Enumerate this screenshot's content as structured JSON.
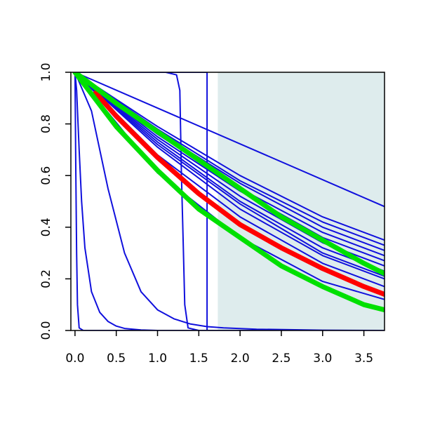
{
  "chart_data": {
    "type": "line",
    "title": "",
    "xlabel": "",
    "ylabel": "",
    "xlim": [
      -0.05,
      3.75
    ],
    "ylim": [
      0.0,
      1.0
    ],
    "x_ticks": [
      0.0,
      0.5,
      1.0,
      1.5,
      2.0,
      2.5,
      3.0,
      3.5
    ],
    "x_tick_labels": [
      "0.0",
      "0.5",
      "1.0",
      "1.5",
      "2.0",
      "2.5",
      "3.0",
      "3.5"
    ],
    "y_ticks": [
      0.0,
      0.2,
      0.4,
      0.6,
      0.8,
      1.0
    ],
    "y_tick_labels": [
      "0.0",
      "0.2",
      "0.4",
      "0.6",
      "0.8",
      "1.0"
    ],
    "grid": false,
    "legend": "none",
    "shaded_region": {
      "x_from": 1.73,
      "x_to": 3.75,
      "color": "#deeced"
    },
    "colors": {
      "blue": "#1010dd",
      "red": "#ff0000",
      "green": "#00e000"
    },
    "series": [
      {
        "color": "blue",
        "weight": "thin",
        "x": [
          0.0,
          0.02,
          0.05,
          1.6,
          1.6,
          1.62,
          3.75
        ],
        "y": [
          1.0,
          1.0,
          1.0,
          1.0,
          0.0,
          0.0,
          0.0
        ]
      },
      {
        "color": "blue",
        "weight": "thin",
        "x": [
          0.0,
          1.1,
          1.23,
          1.27,
          1.29,
          1.31,
          1.33,
          1.37,
          1.5,
          3.75
        ],
        "y": [
          1.0,
          1.0,
          0.99,
          0.93,
          0.6,
          0.35,
          0.1,
          0.01,
          0.0,
          0.0
        ]
      },
      {
        "color": "blue",
        "weight": "thin",
        "x": [
          0.0,
          0.005,
          0.01,
          0.02,
          0.03,
          0.05,
          0.1,
          3.75
        ],
        "y": [
          1.0,
          0.8,
          0.6,
          0.3,
          0.1,
          0.01,
          0.0,
          0.0
        ]
      },
      {
        "color": "blue",
        "weight": "thin",
        "x": [
          0.0,
          0.02,
          0.05,
          0.08,
          0.12,
          0.2,
          0.3,
          0.4,
          0.5,
          0.6,
          0.8,
          1.0,
          3.75
        ],
        "y": [
          1.0,
          0.93,
          0.7,
          0.5,
          0.32,
          0.15,
          0.07,
          0.035,
          0.017,
          0.008,
          0.002,
          0.0,
          0.0
        ]
      },
      {
        "color": "blue",
        "weight": "thin",
        "x": [
          0.0,
          0.2,
          0.4,
          0.6,
          0.8,
          1.0,
          1.2,
          1.4,
          1.6,
          1.8,
          2.2,
          2.6,
          3.0,
          3.75
        ],
        "y": [
          1.0,
          0.85,
          0.55,
          0.3,
          0.15,
          0.08,
          0.045,
          0.025,
          0.015,
          0.01,
          0.005,
          0.003,
          0.001,
          0.0
        ]
      },
      {
        "color": "blue",
        "weight": "thin",
        "x": [
          0.0,
          3.75
        ],
        "y": [
          1.0,
          0.48
        ]
      },
      {
        "color": "blue",
        "weight": "thin",
        "x": [
          0.0,
          1.0,
          2.0,
          3.0,
          3.75
        ],
        "y": [
          1.0,
          0.79,
          0.6,
          0.44,
          0.35
        ]
      },
      {
        "color": "blue",
        "weight": "thin",
        "x": [
          0.0,
          1.0,
          2.0,
          3.0,
          3.75
        ],
        "y": [
          1.0,
          0.78,
          0.58,
          0.42,
          0.33
        ]
      },
      {
        "color": "blue",
        "weight": "thin",
        "x": [
          0.0,
          1.0,
          2.0,
          3.0,
          3.75
        ],
        "y": [
          1.0,
          0.77,
          0.57,
          0.4,
          0.31
        ]
      },
      {
        "color": "blue",
        "weight": "thin",
        "x": [
          0.0,
          1.0,
          2.0,
          3.0,
          3.75
        ],
        "y": [
          1.0,
          0.76,
          0.55,
          0.38,
          0.29
        ]
      },
      {
        "color": "blue",
        "weight": "thin",
        "x": [
          0.0,
          1.0,
          2.0,
          3.0,
          3.75
        ],
        "y": [
          1.0,
          0.75,
          0.54,
          0.36,
          0.27
        ]
      },
      {
        "color": "blue",
        "weight": "thin",
        "x": [
          0.0,
          1.0,
          2.0,
          3.0,
          3.75
        ],
        "y": [
          1.0,
          0.74,
          0.52,
          0.34,
          0.25
        ]
      },
      {
        "color": "blue",
        "weight": "thin",
        "x": [
          0.0,
          1.0,
          2.0,
          3.0,
          3.75
        ],
        "y": [
          1.0,
          0.73,
          0.5,
          0.32,
          0.23
        ]
      },
      {
        "color": "blue",
        "weight": "thin",
        "x": [
          0.0,
          1.0,
          2.0,
          3.0,
          3.75
        ],
        "y": [
          1.0,
          0.72,
          0.49,
          0.3,
          0.21
        ]
      },
      {
        "color": "blue",
        "weight": "thin",
        "x": [
          0.0,
          1.0,
          2.0,
          3.0,
          3.75
        ],
        "y": [
          1.0,
          0.71,
          0.47,
          0.29,
          0.2
        ]
      },
      {
        "color": "blue",
        "weight": "thin",
        "x": [
          0.0,
          1.0,
          2.0,
          3.0,
          3.75
        ],
        "y": [
          1.0,
          0.68,
          0.44,
          0.26,
          0.17
        ]
      },
      {
        "color": "blue",
        "weight": "thin",
        "x": [
          0.0,
          1.0,
          2.0,
          3.0,
          3.75
        ],
        "y": [
          1.0,
          0.61,
          0.36,
          0.19,
          0.12
        ]
      },
      {
        "color": "red",
        "weight": "thick",
        "x": [
          0.25,
          0.5,
          1.0,
          1.5,
          2.0,
          2.5,
          3.0,
          3.5,
          3.75
        ],
        "y": [
          0.92,
          0.83,
          0.67,
          0.53,
          0.41,
          0.32,
          0.24,
          0.17,
          0.14
        ]
      },
      {
        "color": "green",
        "weight": "thick",
        "x": [
          0.0,
          0.5,
          1.0,
          1.5,
          2.0,
          2.5,
          3.0,
          3.5,
          3.75
        ],
        "y": [
          1.0,
          0.88,
          0.77,
          0.66,
          0.55,
          0.44,
          0.35,
          0.26,
          0.22
        ]
      },
      {
        "color": "green",
        "weight": "thick",
        "x": [
          0.0,
          0.5,
          1.0,
          1.5,
          2.0,
          2.5,
          3.0,
          3.5,
          3.75
        ],
        "y": [
          1.0,
          0.79,
          0.62,
          0.47,
          0.36,
          0.25,
          0.17,
          0.1,
          0.08
        ]
      }
    ]
  }
}
